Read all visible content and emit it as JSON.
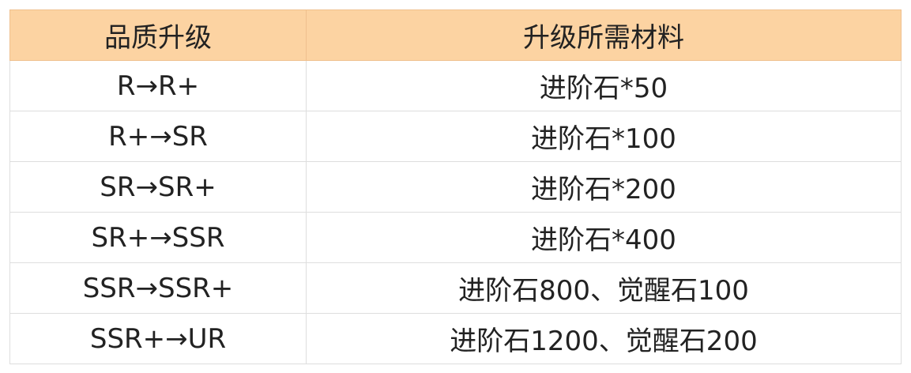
{
  "table": {
    "headers": [
      "品质升级",
      "升级所需材料"
    ],
    "rows": [
      [
        "R→R+",
        "进阶石*50"
      ],
      [
        "R+→SR",
        "进阶石*100"
      ],
      [
        "SR→SR+",
        "进阶石*200"
      ],
      [
        "SR+→SSR",
        "进阶石*400"
      ],
      [
        "SSR→SSR+",
        "进阶石800、觉醒石100"
      ],
      [
        "SSR+→UR",
        "进阶石1200、觉醒石200"
      ]
    ]
  },
  "colors": {
    "header_bg": "#fcd3a2",
    "border": "#dedede"
  }
}
